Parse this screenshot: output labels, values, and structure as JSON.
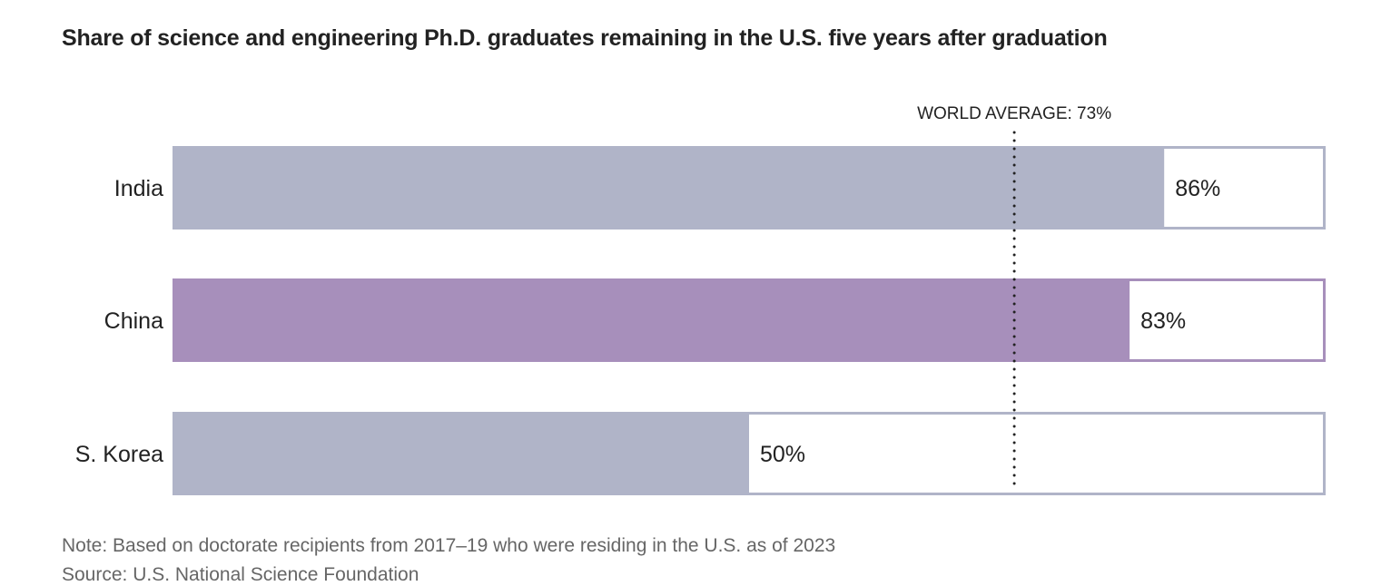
{
  "chart_data": {
    "type": "bar",
    "orientation": "horizontal",
    "title": "Share of science and engineering Ph.D. graduates remaining in the U.S. five years after graduation",
    "categories": [
      "India",
      "China",
      "S. Korea"
    ],
    "values": [
      86,
      83,
      50
    ],
    "data_labels": [
      "86%",
      "83%",
      "50%"
    ],
    "xlim": [
      0,
      100
    ],
    "reference_line": {
      "value": 73,
      "label": "WORLD AVERAGE: 73%"
    },
    "colors": [
      "#b0b4c8",
      "#a78fbb",
      "#b0b4c8"
    ],
    "grid": false
  },
  "footer": {
    "note": "Note: Based on doctorate recipients from 2017–19 who were residing in the U.S. as of 2023",
    "source": "Source: U.S. National Science Foundation"
  }
}
